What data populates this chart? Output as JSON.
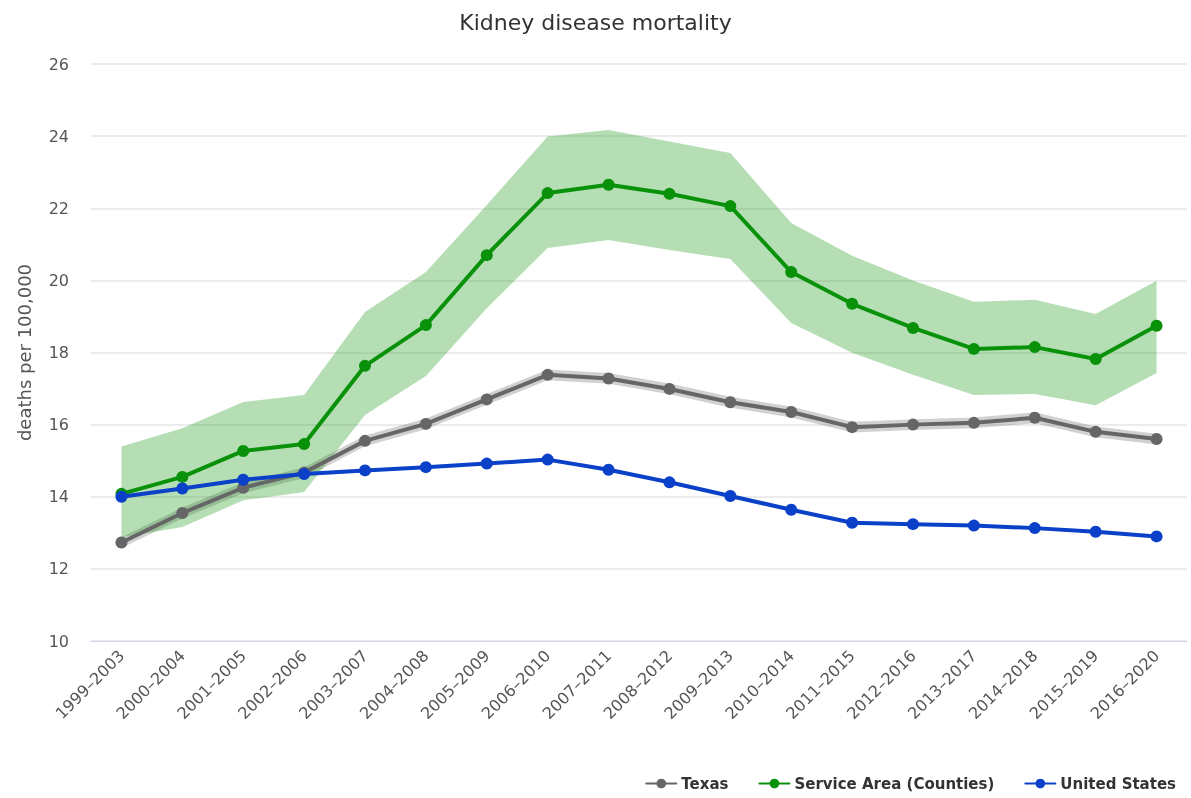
{
  "chart_data": {
    "type": "line",
    "title": "Kidney disease mortality",
    "ylabel": "deaths per 100,000",
    "categories": [
      "1999–2003",
      "2000–2004",
      "2001–2005",
      "2002–2006",
      "2003–2007",
      "2004–2008",
      "2005–2009",
      "2006–2010",
      "2007–2011",
      "2008–2012",
      "2009–2013",
      "2010–2014",
      "2011–2015",
      "2012–2016",
      "2013–2017",
      "2014–2018",
      "2015–2019",
      "2016–2020"
    ],
    "series": [
      {
        "name": "Texas",
        "color": "#666666",
        "values": [
          12.73,
          13.55,
          14.25,
          14.67,
          15.55,
          16.02,
          16.7,
          17.38,
          17.28,
          16.99,
          16.62,
          16.35,
          15.93,
          16.0,
          16.05,
          16.19,
          15.8,
          15.6
        ],
        "lower": [
          12.58,
          13.4,
          14.1,
          14.52,
          15.4,
          15.87,
          16.55,
          17.23,
          17.13,
          16.84,
          16.47,
          16.2,
          15.78,
          15.85,
          15.9,
          16.04,
          15.65,
          15.45
        ],
        "upper": [
          12.88,
          13.7,
          14.4,
          14.82,
          15.7,
          16.17,
          16.85,
          17.53,
          17.43,
          17.14,
          16.77,
          16.5,
          16.08,
          16.15,
          16.2,
          16.34,
          15.95,
          15.75
        ]
      },
      {
        "name": "Service Area (Counties)",
        "color": "#0a910a",
        "values": [
          14.08,
          14.55,
          15.27,
          15.46,
          17.63,
          18.76,
          20.7,
          22.42,
          22.65,
          22.4,
          22.06,
          20.23,
          19.35,
          18.68,
          18.1,
          18.15,
          17.82,
          18.74
        ],
        "lower": [
          12.88,
          13.16,
          13.9,
          14.13,
          16.27,
          17.35,
          19.23,
          20.9,
          21.12,
          20.84,
          20.59,
          18.82,
          17.99,
          17.38,
          16.82,
          16.85,
          16.54,
          17.43
        ],
        "upper": [
          15.39,
          15.9,
          16.63,
          16.82,
          19.12,
          20.23,
          22.09,
          23.99,
          24.17,
          23.85,
          23.53,
          21.59,
          20.68,
          20.0,
          19.41,
          19.46,
          19.07,
          19.99
        ]
      },
      {
        "name": "United States",
        "color": "#0b40c8",
        "values": [
          14.0,
          14.23,
          14.47,
          14.63,
          14.73,
          14.82,
          14.92,
          15.03,
          14.75,
          14.4,
          14.02,
          13.64,
          13.28,
          13.24,
          13.2,
          13.13,
          13.03,
          12.9
        ]
      }
    ],
    "ylim": [
      10,
      26
    ],
    "yticks": [
      10,
      12,
      14,
      16,
      18,
      20,
      22,
      24,
      26
    ],
    "grid": "y",
    "legend": "bottom right",
    "marker": "circle",
    "line_style": "solid"
  }
}
